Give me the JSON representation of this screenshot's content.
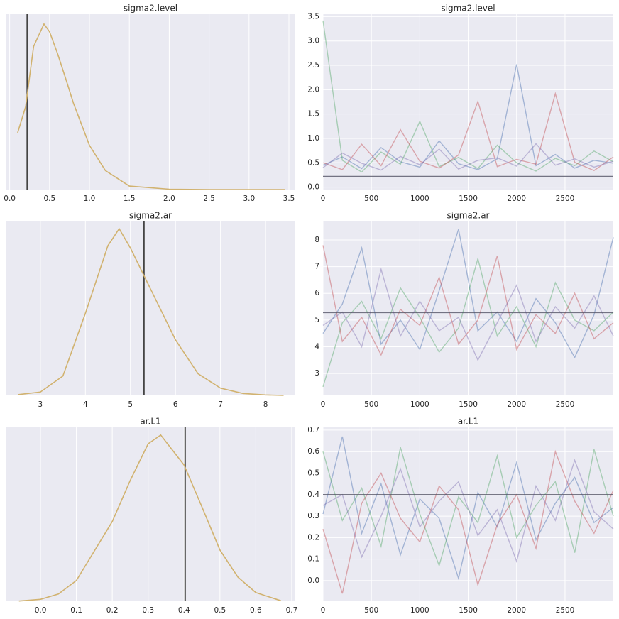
{
  "chart_data": [
    {
      "type": "density",
      "title": "sigma2.level",
      "x": [
        0.1,
        0.2,
        0.3,
        0.43,
        0.5,
        0.6,
        0.7,
        0.8,
        1.0,
        1.2,
        1.5,
        2.0,
        2.5,
        3.0,
        3.45
      ],
      "values": [
        0.81,
        1.18,
        2.04,
        2.36,
        2.25,
        1.94,
        1.59,
        1.23,
        0.63,
        0.27,
        0.05,
        0.005,
        0,
        0,
        0
      ],
      "color": "#d1b26f",
      "xlim": [
        -0.05,
        3.58
      ],
      "ylim": [
        0,
        2.5
      ],
      "xticks": [
        {
          "value": 0,
          "label": "0.0"
        },
        0.5,
        {
          "value": 1,
          "label": "1.0"
        },
        1.5,
        {
          "value": 2,
          "label": "2.0"
        },
        2.5,
        {
          "value": 3,
          "label": "3.0"
        },
        3.5
      ],
      "grid": true,
      "ref_line": 0.22,
      "ref_color": "#444444"
    },
    {
      "type": "trace",
      "title": "sigma2.level",
      "x": [
        0,
        200,
        400,
        600,
        800,
        1000,
        1200,
        1400,
        1600,
        1800,
        2000,
        2200,
        2400,
        2600,
        2800,
        2999
      ],
      "series": [
        {
          "color": "#4c72b0",
          "values": [
            0.45,
            0.62,
            0.38,
            0.81,
            0.52,
            0.41,
            0.95,
            0.48,
            0.36,
            0.58,
            2.52,
            0.44,
            0.67,
            0.39,
            0.55,
            0.49
          ]
        },
        {
          "color": "#55a868",
          "values": [
            3.42,
            0.55,
            0.31,
            0.72,
            0.47,
            1.35,
            0.42,
            0.61,
            0.38,
            0.86,
            0.5,
            0.33,
            0.59,
            0.44,
            0.74,
            0.52
          ]
        },
        {
          "color": "#c44e52",
          "values": [
            0.5,
            0.36,
            0.88,
            0.44,
            1.18,
            0.53,
            0.39,
            0.66,
            1.76,
            0.42,
            0.57,
            0.47,
            1.92,
            0.51,
            0.34,
            0.62
          ]
        },
        {
          "color": "#8172b2",
          "values": [
            0.4,
            0.7,
            0.49,
            0.35,
            0.63,
            0.46,
            0.78,
            0.37,
            0.55,
            0.6,
            0.43,
            0.89,
            0.45,
            0.58,
            0.41,
            0.53
          ]
        }
      ],
      "opacity": 0.45,
      "xlim": [
        0,
        2999
      ],
      "xticks": [
        0,
        500,
        1000,
        1500,
        2000,
        2500
      ],
      "ylim": [
        -0.05,
        3.55
      ],
      "yticks": [
        {
          "value": 0,
          "label": "0.0"
        },
        0.5,
        {
          "value": 1,
          "label": "1.0"
        },
        1.5,
        {
          "value": 2,
          "label": "2.0"
        },
        2.5,
        {
          "value": 3,
          "label": "3.0"
        },
        3.5
      ],
      "grid": true,
      "ref_line": 0.22,
      "ref_color": "#555566"
    },
    {
      "type": "density",
      "title": "sigma2.ar",
      "x": [
        2.5,
        3.0,
        3.5,
        4.0,
        4.5,
        4.75,
        5.0,
        5.5,
        6.0,
        6.5,
        7.0,
        7.5,
        8.0,
        8.4
      ],
      "values": [
        0.003,
        0.014,
        0.08,
        0.34,
        0.62,
        0.69,
        0.61,
        0.42,
        0.23,
        0.09,
        0.03,
        0.008,
        0.002,
        0
      ],
      "color": "#d1b26f",
      "xlim": [
        2.23,
        8.66
      ],
      "ylim": [
        0,
        0.72
      ],
      "xticks": [
        3,
        4,
        5,
        6,
        7,
        8
      ],
      "grid": true,
      "ref_line": 5.3,
      "ref_color": "#444444"
    },
    {
      "type": "trace",
      "title": "sigma2.ar",
      "x": [
        0,
        200,
        400,
        600,
        800,
        1000,
        1200,
        1400,
        1600,
        1800,
        2000,
        2200,
        2400,
        2600,
        2800,
        2999
      ],
      "series": [
        {
          "color": "#4c72b0",
          "values": [
            4.5,
            5.6,
            7.7,
            4.1,
            5.0,
            3.9,
            6.1,
            8.4,
            4.6,
            5.3,
            4.2,
            5.8,
            4.9,
            3.6,
            5.2,
            8.1
          ]
        },
        {
          "color": "#55a868",
          "values": [
            2.5,
            4.9,
            5.7,
            4.3,
            6.2,
            5.1,
            3.8,
            4.7,
            7.3,
            4.4,
            5.5,
            4.0,
            6.4,
            5.0,
            4.6,
            5.3
          ]
        },
        {
          "color": "#c44e52",
          "values": [
            7.8,
            4.2,
            5.1,
            3.7,
            5.4,
            4.8,
            6.6,
            4.1,
            5.0,
            7.4,
            3.9,
            5.2,
            4.5,
            6.0,
            4.3,
            4.9
          ]
        },
        {
          "color": "#8172b2",
          "values": [
            4.8,
            5.3,
            4.0,
            6.9,
            4.4,
            5.7,
            4.6,
            5.1,
            3.5,
            4.9,
            6.3,
            4.2,
            5.5,
            4.7,
            5.9,
            4.4
          ]
        }
      ],
      "opacity": 0.45,
      "xlim": [
        0,
        2999
      ],
      "xticks": [
        0,
        500,
        1000,
        1500,
        2000,
        2500
      ],
      "ylim": [
        2.18,
        8.69
      ],
      "yticks": [
        3,
        4,
        5,
        6,
        7,
        8
      ],
      "grid": true,
      "ref_line": 5.28,
      "ref_color": "#555566"
    },
    {
      "type": "density",
      "title": "ar.L1",
      "x": [
        -0.06,
        0.0,
        0.05,
        0.1,
        0.2,
        0.25,
        0.3,
        0.335,
        0.4,
        0.45,
        0.5,
        0.55,
        0.6,
        0.67
      ],
      "values": [
        0.005,
        0.04,
        0.15,
        0.43,
        1.65,
        2.5,
        3.26,
        3.44,
        2.82,
        1.95,
        1.06,
        0.5,
        0.18,
        0.01
      ],
      "color": "#d1b26f",
      "xlim": [
        -0.097,
        0.71
      ],
      "ylim": [
        0,
        3.6
      ],
      "xticks": [
        {
          "value": 0,
          "label": "0.0"
        },
        0.1,
        0.2,
        0.3,
        0.4,
        0.5,
        0.6,
        0.7
      ],
      "grid": true,
      "ref_line": 0.403,
      "ref_color": "#444444"
    },
    {
      "type": "trace",
      "title": "ar.L1",
      "x": [
        0,
        200,
        400,
        600,
        800,
        1000,
        1200,
        1400,
        1600,
        1800,
        2000,
        2200,
        2400,
        2600,
        2800,
        2999
      ],
      "series": [
        {
          "color": "#4c72b0",
          "values": [
            0.31,
            0.67,
            0.22,
            0.45,
            0.12,
            0.38,
            0.29,
            0.01,
            0.41,
            0.25,
            0.55,
            0.19,
            0.36,
            0.48,
            0.27,
            0.34
          ]
        },
        {
          "color": "#55a868",
          "values": [
            0.6,
            0.28,
            0.43,
            0.16,
            0.62,
            0.31,
            0.07,
            0.39,
            0.27,
            0.58,
            0.2,
            0.35,
            0.46,
            0.13,
            0.61,
            0.3
          ]
        },
        {
          "color": "#c44e52",
          "values": [
            0.24,
            -0.06,
            0.36,
            0.5,
            0.29,
            0.18,
            0.44,
            0.33,
            -0.02,
            0.26,
            0.4,
            0.15,
            0.6,
            0.37,
            0.22,
            0.42
          ]
        },
        {
          "color": "#8172b2",
          "values": [
            0.35,
            0.4,
            0.11,
            0.3,
            0.52,
            0.25,
            0.37,
            0.46,
            0.21,
            0.33,
            0.09,
            0.44,
            0.28,
            0.56,
            0.32,
            0.24
          ]
        }
      ],
      "opacity": 0.45,
      "xlim": [
        0,
        2999
      ],
      "xticks": [
        0,
        500,
        1000,
        1500,
        2000,
        2500
      ],
      "ylim": [
        -0.096,
        0.713
      ],
      "yticks": [
        {
          "value": 0,
          "label": "0.0"
        },
        0.1,
        0.2,
        0.3,
        0.4,
        0.5,
        0.6,
        0.7
      ],
      "grid": true,
      "ref_line": 0.4,
      "ref_color": "#555566"
    }
  ]
}
